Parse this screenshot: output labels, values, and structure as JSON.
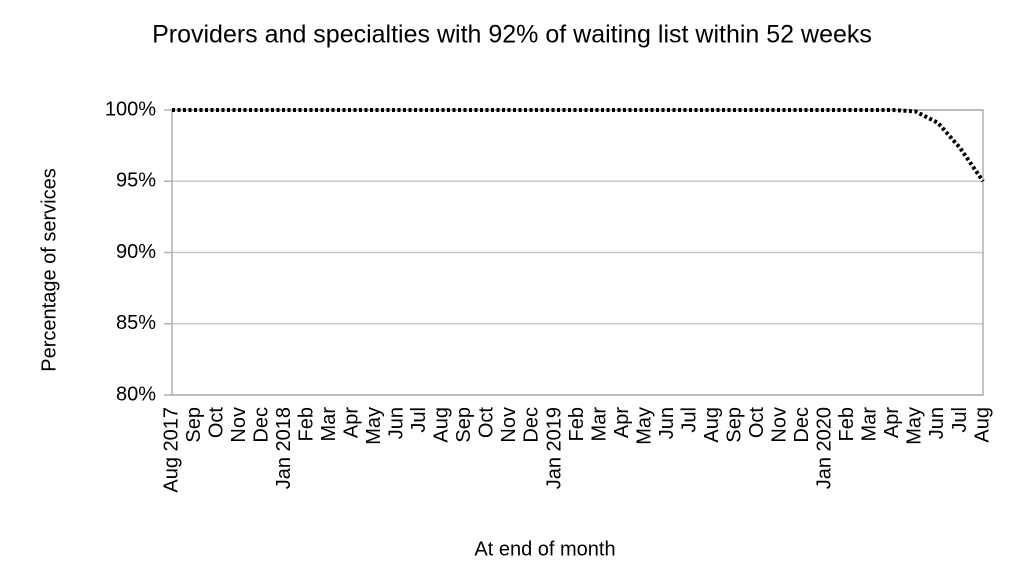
{
  "chart_data": {
    "type": "line",
    "title": "Providers and specialties with 92% of waiting list within 52 weeks",
    "x_label": "At end of month",
    "y_label": "Percentage of services",
    "categories": [
      "Aug 2017",
      "Sep",
      "Oct",
      "Nov",
      "Dec",
      "Jan 2018",
      "Feb",
      "Mar",
      "Apr",
      "May",
      "Jun",
      "Jul",
      "Aug",
      "Sep",
      "Oct",
      "Nov",
      "Dec",
      "Jan 2019",
      "Feb",
      "Mar",
      "Apr",
      "May",
      "Jun",
      "Jul",
      "Aug",
      "Sep",
      "Oct",
      "Nov",
      "Dec",
      "Jan 2020",
      "Feb",
      "Mar",
      "Apr",
      "May",
      "Jun",
      "Jul",
      "Aug"
    ],
    "series": [
      {
        "color": "#000000",
        "values": [
          100,
          100,
          100,
          100,
          100,
          100,
          100,
          100,
          100,
          100,
          100,
          100,
          100,
          100,
          100,
          100,
          100,
          100,
          100,
          100,
          100,
          100,
          100,
          100,
          100,
          100,
          100,
          100,
          100,
          100,
          100,
          100,
          100,
          99.9,
          99.1,
          97.3,
          95
        ]
      }
    ],
    "ylim": [
      80,
      100
    ],
    "yticks": [
      {
        "value": 80,
        "label": "80%"
      },
      {
        "value": 85,
        "label": "85%"
      },
      {
        "value": 90,
        "label": "90%"
      },
      {
        "value": 95,
        "label": "95%"
      },
      {
        "value": 100,
        "label": "100%"
      }
    ],
    "grid": true
  }
}
